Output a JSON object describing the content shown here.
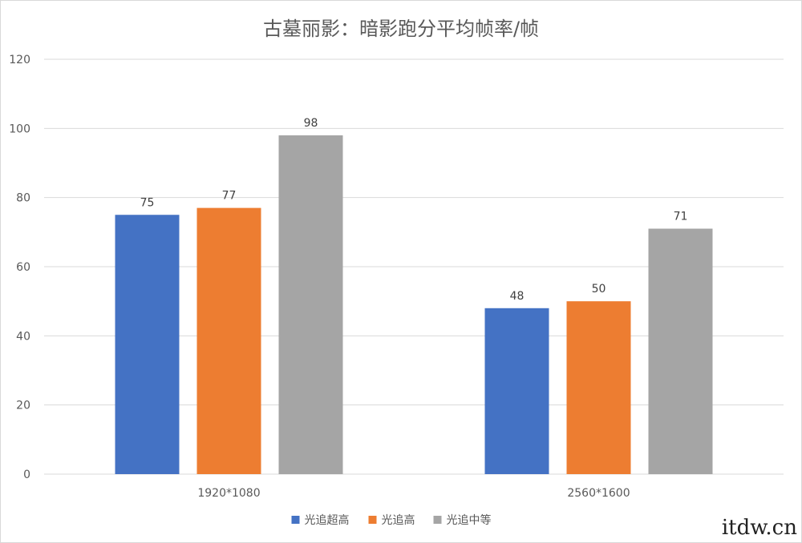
{
  "chart_data": {
    "type": "bar",
    "title": "古墓丽影：暗影跑分平均帧率/帧",
    "categories": [
      "1920*1080",
      "2560*1600"
    ],
    "series": [
      {
        "name": "光追超高",
        "values": [
          75,
          48
        ],
        "color": "#4472C4"
      },
      {
        "name": "光追高",
        "values": [
          77,
          50
        ],
        "color": "#ED7D31"
      },
      {
        "name": "光追中等",
        "values": [
          98,
          71
        ],
        "color": "#A5A5A5"
      }
    ],
    "ylim": [
      0,
      120
    ],
    "yticks": [
      0,
      20,
      40,
      60,
      80,
      100,
      120
    ],
    "grid": true,
    "legend": "bottom"
  },
  "watermark": "itdw.cn"
}
